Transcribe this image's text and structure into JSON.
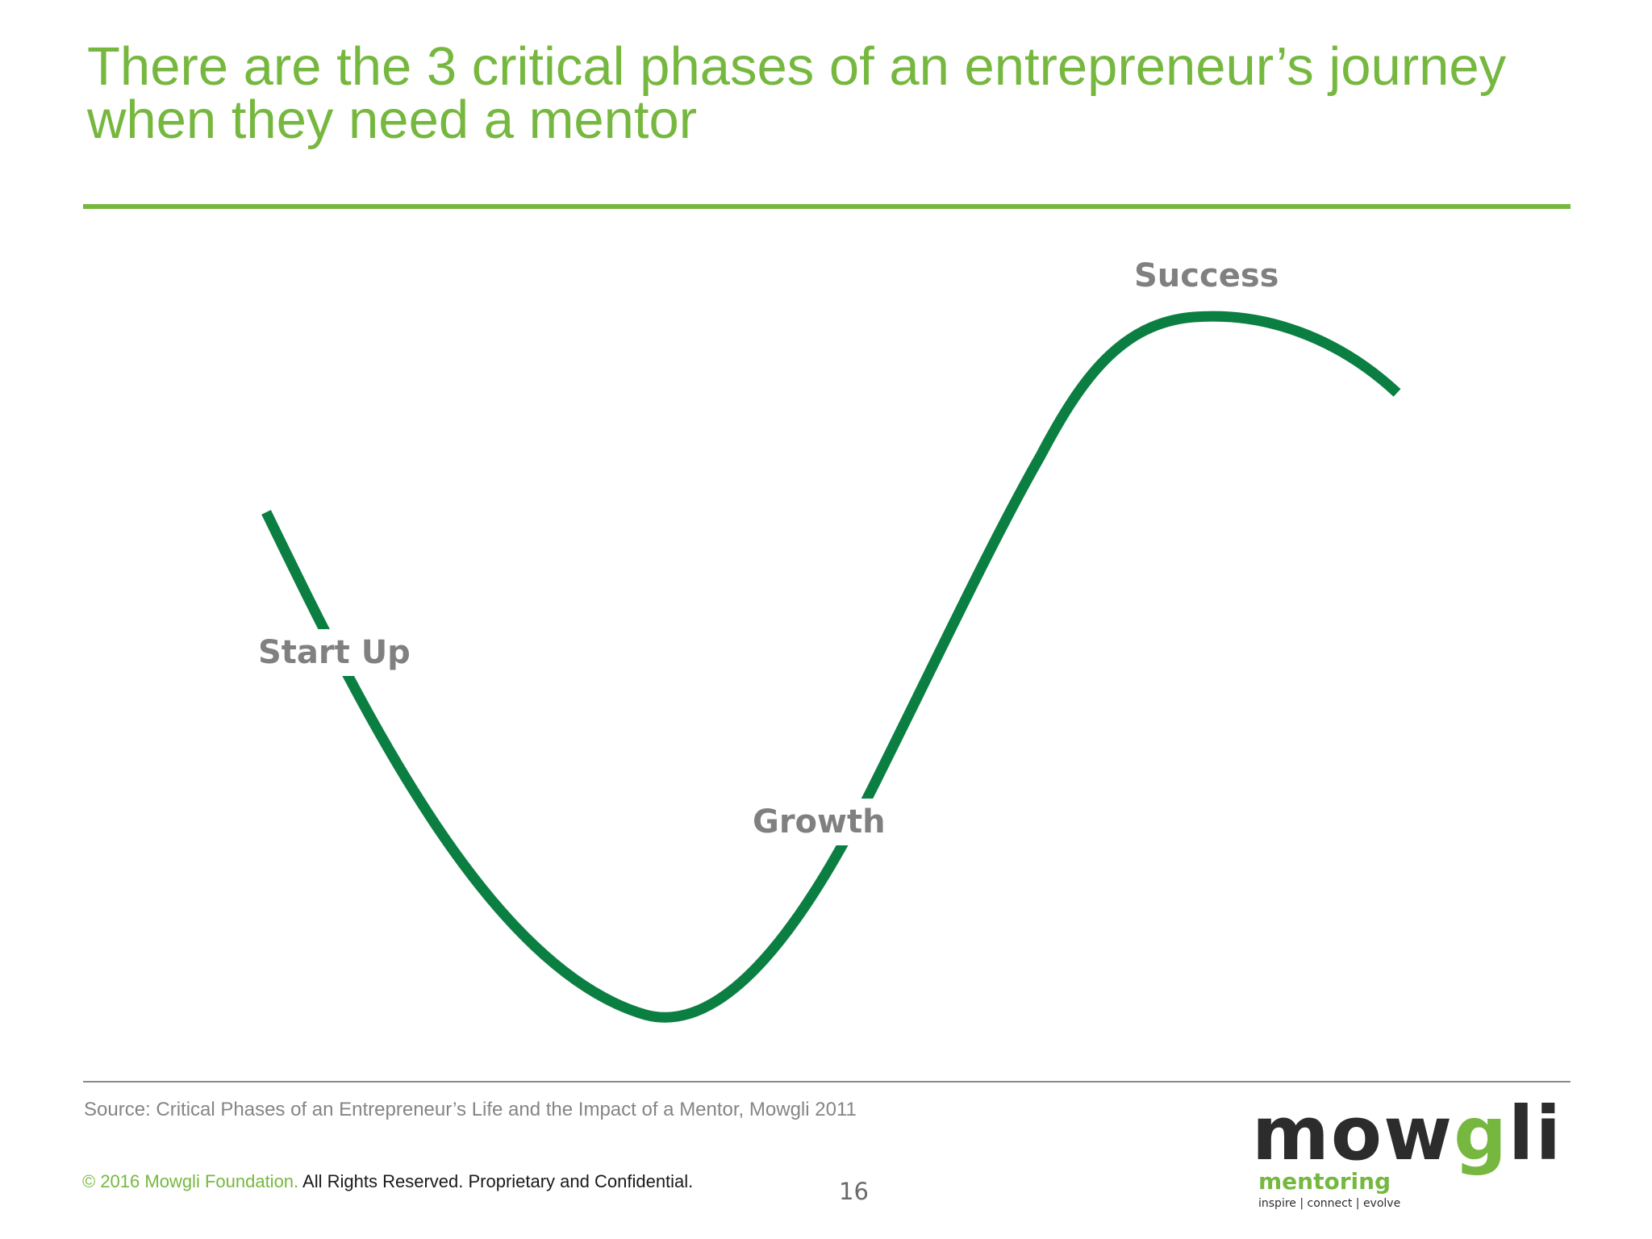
{
  "slide": {
    "title_line1": "There are the 3 critical phases of an entrepreneur’s journey",
    "title_line2": "when they need a mentor",
    "page_number": "16"
  },
  "diagram": {
    "phases": [
      {
        "label": "Start Up"
      },
      {
        "label": "Growth"
      },
      {
        "label": "Success"
      }
    ],
    "curve_color": "#0b7f42",
    "accent_color": "#76b83f"
  },
  "source": {
    "text": "Source: Critical Phases of an Entrepreneur’s Life and the Impact of a Mentor, Mowgli 2011"
  },
  "footer": {
    "copyright": "© 2016 Mowgli Foundation.",
    "rights": " All Rights Reserved.  Proprietary and Confidential."
  },
  "logo": {
    "word_start": "mow",
    "word_g": "g",
    "word_end": "li",
    "subtitle": "mentoring",
    "tagline": "inspire | connect | evolve"
  }
}
